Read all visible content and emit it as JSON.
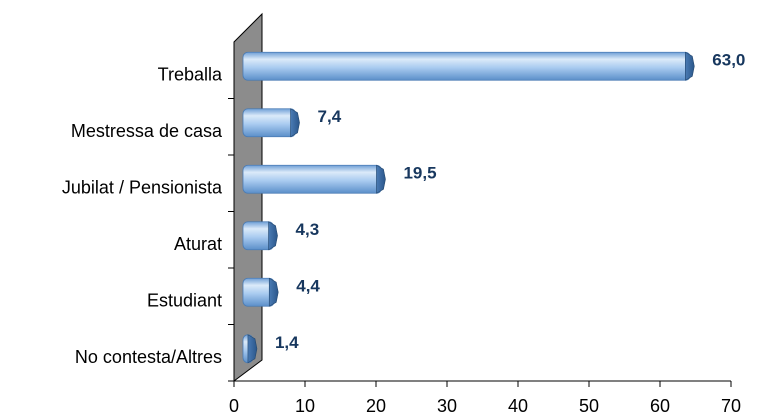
{
  "chart_data": {
    "type": "bar",
    "orientation": "horizontal",
    "style": "3d-cylinder",
    "categories": [
      "Treballa",
      "Mestressa de casa",
      "Jubilat / Pensionista",
      "Aturat",
      "Estudiant",
      "No contesta/Altres"
    ],
    "values": [
      63.0,
      7.4,
      19.5,
      4.3,
      4.4,
      1.4
    ],
    "value_labels": [
      "63,0",
      "7,4",
      "19,5",
      "4,3",
      "4,4",
      "1,4"
    ],
    "x_ticks": [
      "0",
      "10",
      "20",
      "30",
      "40",
      "50",
      "60",
      "70"
    ],
    "xlim": [
      0,
      70
    ],
    "title": "",
    "xlabel": "",
    "ylabel": "",
    "grid": false,
    "legend": "none",
    "colors": {
      "bar_fill": "#9dc3ee",
      "bar_light": "#dbeaf9",
      "bar_dark": "#5b8fc9",
      "bar_cap": "#2f5f97",
      "wall": "#8c8c8c",
      "label": "#17375e"
    }
  }
}
